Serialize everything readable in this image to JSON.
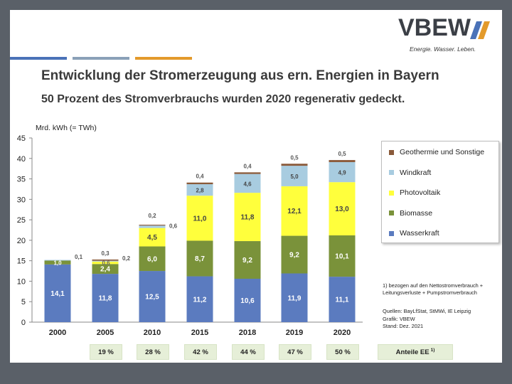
{
  "logo": {
    "word": "VBEW",
    "tagline": "Energie. Wasser. Leben.",
    "slash_colors": [
      "#4a72b8",
      "#e39a2b"
    ]
  },
  "accent_stripes": [
    "#4a72b8",
    "#8aa0b8",
    "#e39a2b"
  ],
  "title": "Entwicklung der Stromerzeugung aus ern. Energien in Bayern",
  "subtitle": "50 Prozent des Stromverbrauchs wurden 2020 regenerativ gedeckt.",
  "footnote": "1) bezogen auf den Nettostromverbrauch + Leitungsverluste + Pumpstromverbrauch",
  "sources": [
    "Quellen: BayLfStat, StMWi, IE Leipzig",
    "Grafik: VBEW",
    "Stand: Dez. 2021"
  ],
  "shares_label": "Anteile EE",
  "shares_label_sup": "1)",
  "chart_data": {
    "type": "bar",
    "stacked": true,
    "ylabel": "Mrd. kWh (= TWh)",
    "ylim": [
      0,
      45
    ],
    "yticks": [
      0,
      5,
      10,
      15,
      20,
      25,
      30,
      35,
      40,
      45
    ],
    "grid": false,
    "legend_position": "right",
    "categories": [
      "2000",
      "2005",
      "2010",
      "2015",
      "2018",
      "2019",
      "2020"
    ],
    "series": [
      {
        "name": "Wasserkraft",
        "color": "#5b7bbf",
        "values": [
          14.1,
          11.8,
          12.5,
          11.2,
          10.6,
          11.9,
          11.1
        ],
        "labels": [
          "14,1",
          "11,8",
          "12,5",
          "11,2",
          "10,6",
          "11,9",
          "11,1"
        ],
        "label_color": "#ffffff"
      },
      {
        "name": "Biomasse",
        "color": "#7a923a",
        "values": [
          1.0,
          2.4,
          6.0,
          8.7,
          9.2,
          9.2,
          10.1
        ],
        "labels": [
          "1,0",
          "2,4",
          "6,0",
          "8,7",
          "9,2",
          "9,2",
          "10,1"
        ],
        "label_color": "#ffffff"
      },
      {
        "name": "Photovoltaik",
        "color": "#ffff3c",
        "values": [
          0,
          0.6,
          4.5,
          11.0,
          11.8,
          12.1,
          13.0
        ],
        "labels": [
          "",
          "0,6",
          "4,5",
          "11,0",
          "11,8",
          "12,1",
          "13,0"
        ],
        "label_color": "#444444"
      },
      {
        "name": "Windkraft",
        "color": "#a8cce0",
        "values": [
          0.1,
          0.2,
          0.6,
          2.8,
          4.6,
          5.0,
          4.9
        ],
        "labels": [
          "0,1",
          "0,2",
          "0,6",
          "2,8",
          "4,6",
          "5,0",
          "4,9"
        ],
        "label_color": "#444444"
      },
      {
        "name": "Geothermie und Sonstige",
        "color": "#8a5a3a",
        "values": [
          0,
          0.3,
          0.2,
          0.4,
          0.4,
          0.5,
          0.5
        ],
        "labels": [
          "",
          "0,3",
          "0,2",
          "0,4",
          "0,4",
          "0,5",
          "0,5"
        ],
        "label_color": "#444444"
      }
    ],
    "shares": [
      "19 %",
      "28 %",
      "42 %",
      "44 %",
      "47 %",
      "50 %"
    ],
    "shares_categories": [
      "2005",
      "2010",
      "2015",
      "2018",
      "2019",
      "2020"
    ]
  }
}
